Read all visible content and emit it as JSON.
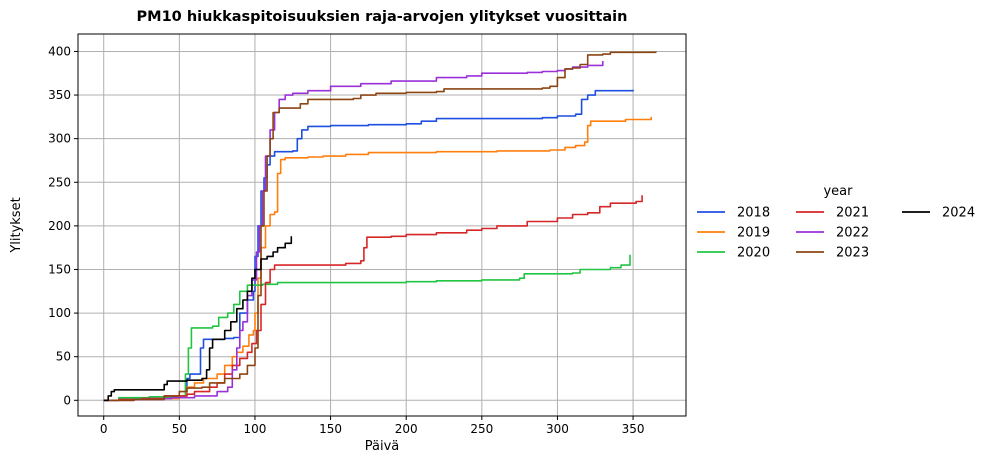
{
  "chart_data": {
    "type": "line",
    "title": "PM10 hiukkaspitoisuuksien raja-arvojen ylitykset vuosittain",
    "xlabel": "Päivä",
    "ylabel": "Ylitykset",
    "xlim": [
      -17,
      385
    ],
    "ylim": [
      -18,
      420
    ],
    "xticks": [
      0,
      50,
      100,
      150,
      200,
      250,
      300,
      350
    ],
    "yticks": [
      0,
      50,
      100,
      150,
      200,
      250,
      300,
      350,
      400
    ],
    "grid": true,
    "legend": {
      "title": "year",
      "placement": "right"
    },
    "series": [
      {
        "name": "2018",
        "color": "#1f4fe0",
        "points": [
          [
            0,
            0
          ],
          [
            10,
            1
          ],
          [
            25,
            2
          ],
          [
            40,
            3
          ],
          [
            52,
            5
          ],
          [
            55,
            25
          ],
          [
            57,
            30
          ],
          [
            62,
            30
          ],
          [
            64,
            60
          ],
          [
            66,
            70
          ],
          [
            80,
            71
          ],
          [
            86,
            72
          ],
          [
            90,
            100
          ],
          [
            95,
            115
          ],
          [
            99,
            125
          ],
          [
            100,
            165
          ],
          [
            102,
            200
          ],
          [
            104,
            240
          ],
          [
            106,
            255
          ],
          [
            108,
            270
          ],
          [
            110,
            280
          ],
          [
            113,
            285
          ],
          [
            125,
            286
          ],
          [
            128,
            300
          ],
          [
            131,
            310
          ],
          [
            135,
            314
          ],
          [
            150,
            315
          ],
          [
            175,
            316
          ],
          [
            200,
            317
          ],
          [
            210,
            320
          ],
          [
            220,
            323
          ],
          [
            250,
            323
          ],
          [
            290,
            324
          ],
          [
            300,
            326
          ],
          [
            312,
            328
          ],
          [
            316,
            345
          ],
          [
            320,
            350
          ],
          [
            325,
            355
          ],
          [
            350,
            356
          ]
        ]
      },
      {
        "name": "2019",
        "color": "#ff7f0e",
        "points": [
          [
            0,
            0
          ],
          [
            20,
            1
          ],
          [
            40,
            2
          ],
          [
            50,
            5
          ],
          [
            55,
            15
          ],
          [
            60,
            20
          ],
          [
            66,
            25
          ],
          [
            75,
            30
          ],
          [
            80,
            40
          ],
          [
            85,
            50
          ],
          [
            88,
            55
          ],
          [
            92,
            62
          ],
          [
            96,
            75
          ],
          [
            99,
            80
          ],
          [
            100,
            100
          ],
          [
            102,
            140
          ],
          [
            104,
            175
          ],
          [
            107,
            200
          ],
          [
            110,
            213
          ],
          [
            113,
            216
          ],
          [
            115,
            260
          ],
          [
            117,
            276
          ],
          [
            120,
            278
          ],
          [
            135,
            279
          ],
          [
            145,
            280
          ],
          [
            160,
            282
          ],
          [
            175,
            284
          ],
          [
            220,
            285
          ],
          [
            260,
            286
          ],
          [
            295,
            287
          ],
          [
            305,
            290
          ],
          [
            312,
            292
          ],
          [
            318,
            296
          ],
          [
            320,
            315
          ],
          [
            322,
            320
          ],
          [
            345,
            322
          ],
          [
            362,
            325
          ]
        ]
      },
      {
        "name": "2020",
        "color": "#22c444",
        "points": [
          [
            0,
            0
          ],
          [
            10,
            3
          ],
          [
            30,
            4
          ],
          [
            50,
            5
          ],
          [
            54,
            30
          ],
          [
            56,
            60
          ],
          [
            58,
            83
          ],
          [
            72,
            85
          ],
          [
            76,
            95
          ],
          [
            82,
            100
          ],
          [
            86,
            110
          ],
          [
            90,
            125
          ],
          [
            95,
            132
          ],
          [
            105,
            133
          ],
          [
            115,
            135
          ],
          [
            150,
            135
          ],
          [
            195,
            135
          ],
          [
            200,
            136
          ],
          [
            220,
            137
          ],
          [
            250,
            138
          ],
          [
            268,
            138
          ],
          [
            275,
            140
          ],
          [
            278,
            145
          ],
          [
            310,
            146
          ],
          [
            315,
            150
          ],
          [
            335,
            152
          ],
          [
            342,
            155
          ],
          [
            348,
            167
          ]
        ]
      },
      {
        "name": "2021",
        "color": "#d62728",
        "points": [
          [
            0,
            0
          ],
          [
            10,
            1
          ],
          [
            25,
            2
          ],
          [
            40,
            5
          ],
          [
            55,
            7
          ],
          [
            60,
            10
          ],
          [
            70,
            15
          ],
          [
            75,
            20
          ],
          [
            80,
            30
          ],
          [
            85,
            40
          ],
          [
            90,
            48
          ],
          [
            95,
            55
          ],
          [
            98,
            65
          ],
          [
            101,
            80
          ],
          [
            104,
            110
          ],
          [
            107,
            135
          ],
          [
            110,
            150
          ],
          [
            113,
            155
          ],
          [
            145,
            155
          ],
          [
            160,
            157
          ],
          [
            170,
            160
          ],
          [
            172,
            175
          ],
          [
            174,
            187
          ],
          [
            190,
            188
          ],
          [
            200,
            190
          ],
          [
            220,
            192
          ],
          [
            240,
            195
          ],
          [
            250,
            197
          ],
          [
            260,
            200
          ],
          [
            280,
            205
          ],
          [
            300,
            209
          ],
          [
            310,
            213
          ],
          [
            320,
            215
          ],
          [
            328,
            222
          ],
          [
            335,
            226
          ],
          [
            352,
            228
          ],
          [
            356,
            235
          ]
        ]
      },
      {
        "name": "2022",
        "color": "#9b30d9",
        "points": [
          [
            0,
            0
          ],
          [
            20,
            1
          ],
          [
            40,
            2
          ],
          [
            45,
            3
          ],
          [
            60,
            5
          ],
          [
            75,
            10
          ],
          [
            82,
            15
          ],
          [
            85,
            35
          ],
          [
            88,
            60
          ],
          [
            90,
            80
          ],
          [
            92,
            90
          ],
          [
            95,
            120
          ],
          [
            98,
            138
          ],
          [
            101,
            170
          ],
          [
            103,
            200
          ],
          [
            105,
            240
          ],
          [
            107,
            280
          ],
          [
            110,
            310
          ],
          [
            113,
            330
          ],
          [
            116,
            345
          ],
          [
            120,
            350
          ],
          [
            125,
            352
          ],
          [
            135,
            355
          ],
          [
            150,
            360
          ],
          [
            170,
            363
          ],
          [
            190,
            366
          ],
          [
            220,
            370
          ],
          [
            240,
            372
          ],
          [
            250,
            375
          ],
          [
            280,
            376
          ],
          [
            290,
            377
          ],
          [
            300,
            378
          ],
          [
            305,
            380
          ],
          [
            310,
            382
          ],
          [
            320,
            384
          ],
          [
            330,
            389
          ]
        ]
      },
      {
        "name": "2023",
        "color": "#8b4513",
        "points": [
          [
            0,
            0
          ],
          [
            20,
            1
          ],
          [
            40,
            5
          ],
          [
            50,
            10
          ],
          [
            55,
            14
          ],
          [
            65,
            15
          ],
          [
            70,
            20
          ],
          [
            80,
            25
          ],
          [
            90,
            30
          ],
          [
            95,
            40
          ],
          [
            100,
            60
          ],
          [
            102,
            120
          ],
          [
            104,
            200
          ],
          [
            106,
            240
          ],
          [
            108,
            280
          ],
          [
            110,
            300
          ],
          [
            112,
            330
          ],
          [
            116,
            335
          ],
          [
            130,
            340
          ],
          [
            135,
            345
          ],
          [
            165,
            346
          ],
          [
            170,
            350
          ],
          [
            180,
            352
          ],
          [
            200,
            353
          ],
          [
            220,
            354
          ],
          [
            225,
            357
          ],
          [
            290,
            358
          ],
          [
            295,
            360
          ],
          [
            300,
            370
          ],
          [
            305,
            380
          ],
          [
            310,
            381
          ],
          [
            315,
            385
          ],
          [
            320,
            396
          ],
          [
            330,
            397
          ],
          [
            335,
            399
          ],
          [
            365,
            400
          ]
        ]
      },
      {
        "name": "2024",
        "color": "#000000",
        "points": [
          [
            0,
            0
          ],
          [
            3,
            5
          ],
          [
            5,
            10
          ],
          [
            7,
            12
          ],
          [
            20,
            12
          ],
          [
            35,
            12
          ],
          [
            40,
            18
          ],
          [
            42,
            22
          ],
          [
            50,
            22
          ],
          [
            55,
            23
          ],
          [
            65,
            25
          ],
          [
            68,
            35
          ],
          [
            70,
            60
          ],
          [
            72,
            70
          ],
          [
            78,
            70
          ],
          [
            80,
            80
          ],
          [
            84,
            90
          ],
          [
            88,
            105
          ],
          [
            92,
            115
          ],
          [
            95,
            125
          ],
          [
            98,
            140
          ],
          [
            100,
            150
          ],
          [
            104,
            162
          ],
          [
            108,
            165
          ],
          [
            112,
            170
          ],
          [
            115,
            175
          ],
          [
            120,
            180
          ],
          [
            124,
            188
          ]
        ]
      }
    ]
  }
}
